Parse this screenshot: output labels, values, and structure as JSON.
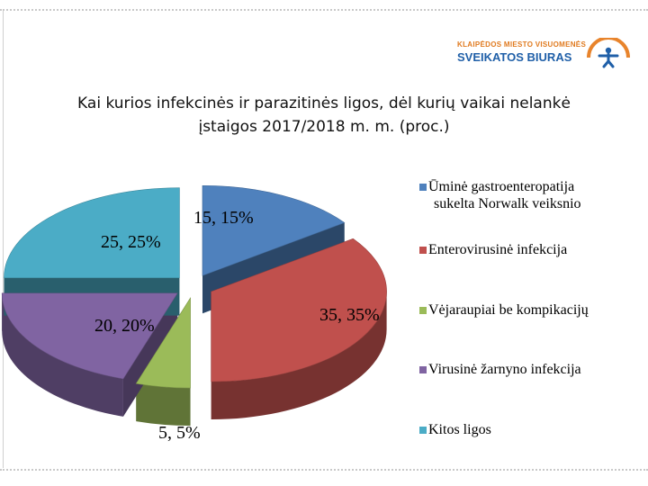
{
  "logo": {
    "line1": "KLAIPĖDOS MIESTO VISUOMENĖS",
    "line2": "SVEIKATOS BIURAS",
    "icon": "person-figure-icon"
  },
  "colors": {
    "blue": "#4f81bd",
    "red": "#c0504d",
    "green": "#9bbb59",
    "purple": "#8064a2",
    "cyan": "#4bacc6"
  },
  "chart_data": {
    "type": "pie",
    "style": "3d-exploded",
    "title": "Kai kurios infekcinės ir parazitinės ligos, dėl kurių vaikai nelankė įstaigos 2017/2018 m. m. (proc.)",
    "title_lines": [
      "Kai kurios infekcinės ir parazitinės ligos, dėl kurių vaikai nelankė",
      "įstaigos  2017/2018 m. m. (proc.)"
    ],
    "legend_position": "right",
    "slices": [
      {
        "name": "Ūminė gastroenteropatija sukelta Norwalk veiksnio",
        "value": 15,
        "label": "15, 15%",
        "color": "#4f81bd"
      },
      {
        "name": "Enterovirusinė infekcija",
        "value": 35,
        "label": "35, 35%",
        "color": "#c0504d"
      },
      {
        "name": "Vėjaraupiai be kompikacijų",
        "value": 5,
        "label": "5, 5%",
        "color": "#9bbb59"
      },
      {
        "name": "Virusinė žarnyno infekcija",
        "value": 20,
        "label": "20, 20%",
        "color": "#8064a2"
      },
      {
        "name": "Kitos ligos",
        "value": 25,
        "label": "25, 25%",
        "color": "#4bacc6"
      }
    ],
    "legend": [
      {
        "lines": [
          "Ūminė gastroenteropatija",
          "sukelta Norwalk veiksnio"
        ]
      },
      {
        "lines": [
          "Enterovirusinė infekcija"
        ]
      },
      {
        "lines": [
          "Vėjaraupiai be kompikacijų"
        ]
      },
      {
        "lines": [
          "Virusinė žarnyno infekcija"
        ]
      },
      {
        "lines": [
          "Kitos ligos"
        ]
      }
    ]
  }
}
